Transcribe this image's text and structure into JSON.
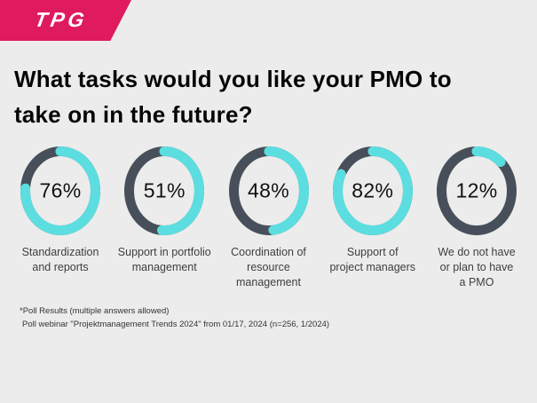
{
  "page": {
    "background": "#ECECEC"
  },
  "logo": {
    "text": "TPG",
    "bg_color": "#DF1A5F",
    "text_color": "#FFFFFF"
  },
  "title": {
    "text": "What tasks would you like your PMO to\ntake on in the future?"
  },
  "chart_data": {
    "type": "pie",
    "variant": "donut-multiples",
    "title": "What tasks would you like your PMO to take on in the future?",
    "unit": "%",
    "categories": [
      "Standardization and reports",
      "Support in portfolio management",
      "Coordination of resource management",
      "Support of project managers",
      "We do not have or plan to have a PMO"
    ],
    "values": [
      76,
      51,
      48,
      82,
      12
    ],
    "colors": {
      "value_arc": "#5CDEE0",
      "remainder_arc": "#47505A"
    },
    "items": [
      {
        "value": 76,
        "value_label": "76%",
        "label": "Standardization\nand reports"
      },
      {
        "value": 51,
        "value_label": "51%",
        "label": "Support in portfolio\nmanagement"
      },
      {
        "value": 48,
        "value_label": "48%",
        "label": "Coordination of\nresource\nmanagement"
      },
      {
        "value": 82,
        "value_label": "82%",
        "label": "Support of\nproject managers"
      },
      {
        "value": 12,
        "value_label": "12%",
        "label": "We do not have\nor plan to have\na PMO"
      }
    ]
  },
  "footnote": {
    "line1": "*Poll Results (multiple answers allowed)",
    "line2": "Poll webinar \"Projektmanagement Trends 2024\" from 01/17, 2024 (n=256, 1/2024)"
  }
}
